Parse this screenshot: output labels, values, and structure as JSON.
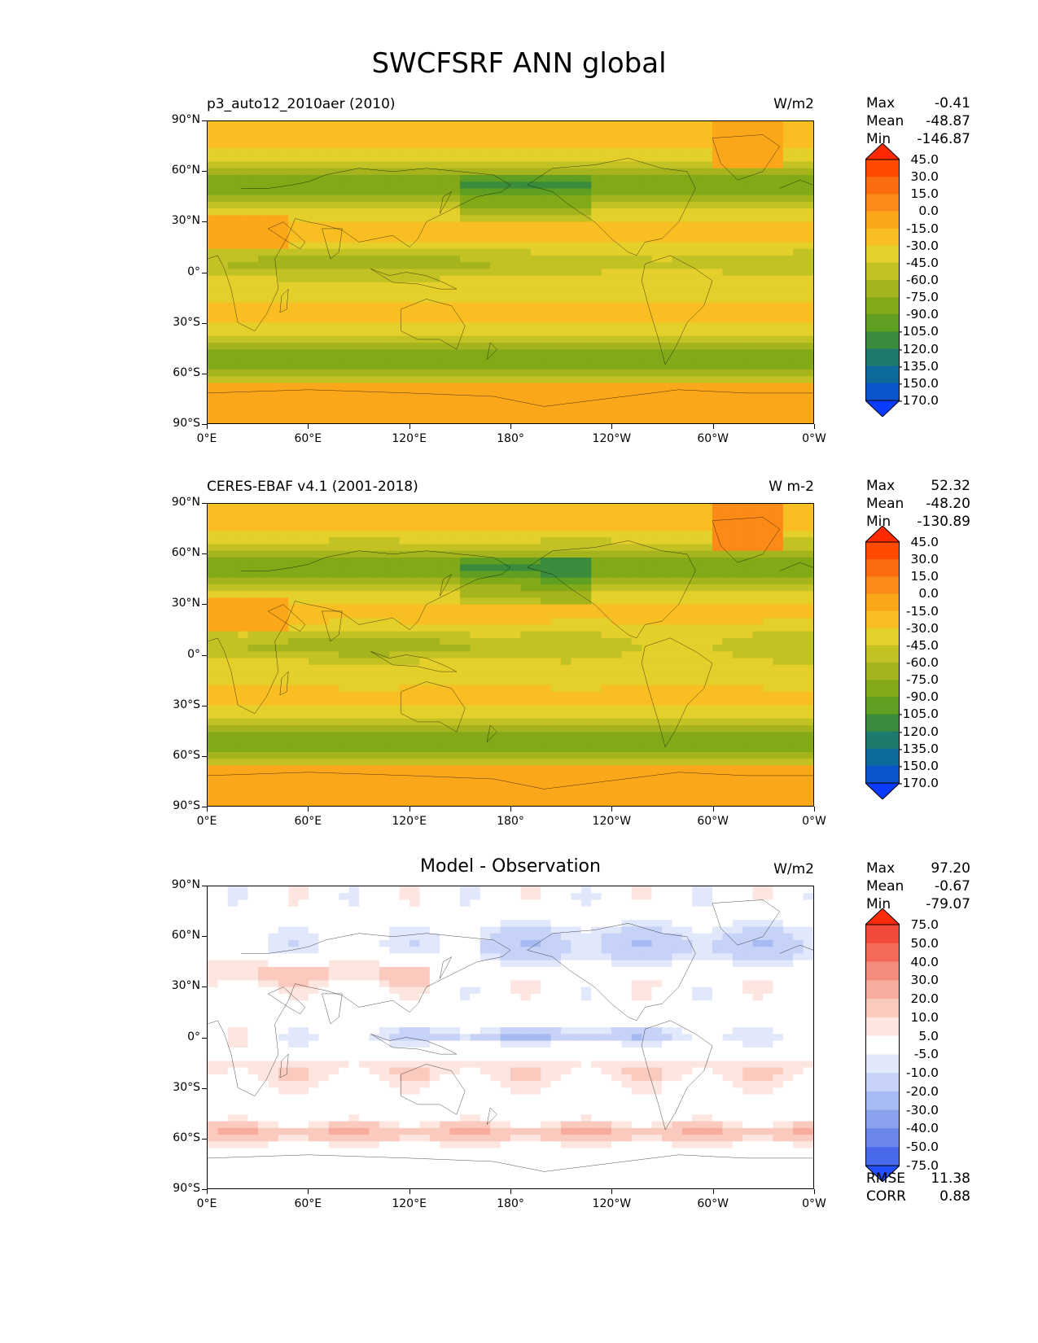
{
  "page_title": "SWCFSRF ANN global",
  "x_ticks": [
    "0°E",
    "60°E",
    "120°E",
    "180°",
    "120°W",
    "60°W",
    "0°W"
  ],
  "y_ticks": [
    "90°N",
    "60°N",
    "30°N",
    "0°",
    "30°S",
    "60°S",
    "90°S"
  ],
  "panels": [
    {
      "title_left": "p3_auto12_2010aer (2010)",
      "title_center": "",
      "units": "W/m2",
      "stats": [
        {
          "label": "Max",
          "value": "-0.41"
        },
        {
          "label": "Mean",
          "value": "-48.87"
        },
        {
          "label": "Min",
          "value": "-146.87"
        }
      ],
      "colorbar_labels": [
        "45.0",
        "30.0",
        "15.0",
        "0.0",
        "-15.0",
        "-30.0",
        "-45.0",
        "-60.0",
        "-75.0",
        "-90.0",
        "-105.0",
        "-120.0",
        "-135.0",
        "-150.0",
        "-170.0"
      ],
      "colorbar_colors": [
        "#ff2a00",
        "#ff4a00",
        "#fb6c10",
        "#fb8a16",
        "#fca61a",
        "#f8be22",
        "#e5cf2b",
        "#c3c224",
        "#a5b41d",
        "#82aa18",
        "#5f9f21",
        "#3a8c3c",
        "#1e7a6a",
        "#0d6a9a",
        "#0a55cc",
        "#0a3cff"
      ]
    },
    {
      "title_left": "CERES-EBAF v4.1 (2001-2018)",
      "title_center": "",
      "units": "W m-2",
      "stats": [
        {
          "label": "Max",
          "value": "52.32"
        },
        {
          "label": "Mean",
          "value": "-48.20"
        },
        {
          "label": "Min",
          "value": "-130.89"
        }
      ],
      "colorbar_labels": [
        "45.0",
        "30.0",
        "15.0",
        "0.0",
        "-15.0",
        "-30.0",
        "-45.0",
        "-60.0",
        "-75.0",
        "-90.0",
        "-105.0",
        "-120.0",
        "-135.0",
        "-150.0",
        "-170.0"
      ],
      "colorbar_colors": [
        "#ff2a00",
        "#ff4a00",
        "#fb6c10",
        "#fb8a16",
        "#fca61a",
        "#f8be22",
        "#e5cf2b",
        "#c3c224",
        "#a5b41d",
        "#82aa18",
        "#5f9f21",
        "#3a8c3c",
        "#1e7a6a",
        "#0d6a9a",
        "#0a55cc",
        "#0a3cff"
      ]
    },
    {
      "title_left": "",
      "title_center": "Model - Observation",
      "units": "W/m2",
      "stats": [
        {
          "label": "Max",
          "value": "97.20"
        },
        {
          "label": "Mean",
          "value": "-0.67"
        },
        {
          "label": "Min",
          "value": "-79.07"
        }
      ],
      "extra_stats": [
        {
          "label": "RMSE",
          "value": "11.38"
        },
        {
          "label": "CORR",
          "value": "0.88"
        }
      ],
      "colorbar_labels": [
        "75.0",
        "50.0",
        "40.0",
        "30.0",
        "20.0",
        "10.0",
        "5.0",
        "-5.0",
        "-10.0",
        "-20.0",
        "-30.0",
        "-40.0",
        "-50.0",
        "-75.0"
      ],
      "colorbar_colors": [
        "#ff2a0a",
        "#f24a3a",
        "#f36a5a",
        "#f68c7c",
        "#f8ac9e",
        "#fbcabe",
        "#fde6e0",
        "#ffffff",
        "#e2e8fb",
        "#c6d2f7",
        "#a8baf2",
        "#8aa2ee",
        "#6a86ea",
        "#4a6aee",
        "#2250ff"
      ]
    }
  ]
}
